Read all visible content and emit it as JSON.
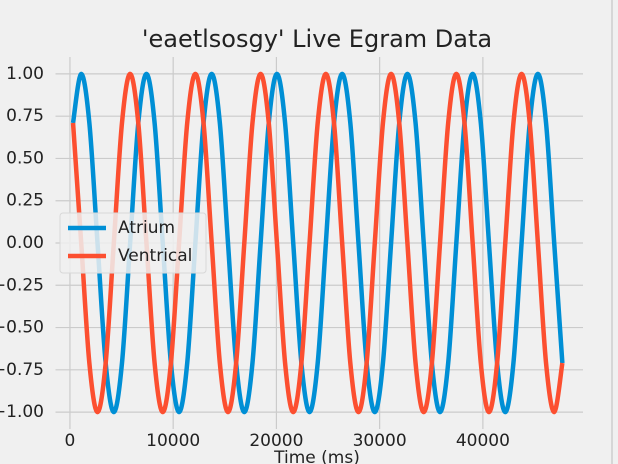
{
  "chart_data": {
    "type": "line",
    "title": "'eaetlsosgy' Live Egram Data",
    "xlabel": "Time (ms)",
    "x": [
      300,
      1090,
      1880,
      2670,
      3460,
      4250,
      5040,
      5830,
      6620,
      7410,
      8200,
      8990,
      9780,
      10570,
      11360,
      12150,
      12940,
      13730,
      14520,
      15310,
      16100,
      16890,
      17680,
      18470,
      19260,
      20050,
      20840,
      21630,
      22420,
      23210,
      24000,
      24790,
      25580,
      26370,
      27160,
      27950,
      28740,
      29530,
      30320,
      31110,
      31900,
      32690,
      33480,
      34270,
      35060,
      35850,
      36640,
      37430,
      38220,
      39010,
      39800,
      40590,
      41380,
      42170,
      42960,
      43750,
      44540,
      45330,
      46120,
      46910,
      47700
    ],
    "series": [
      {
        "name": "Atrium",
        "color": "#008fd5",
        "values": [
          0.71,
          1,
          0.71,
          0,
          -0.71,
          -1,
          -0.71,
          0,
          0.71,
          1,
          0.71,
          0,
          -0.71,
          -1,
          -0.71,
          0,
          0.71,
          1,
          0.71,
          0,
          -0.71,
          -1,
          -0.71,
          0,
          0.71,
          1,
          0.71,
          0,
          -0.71,
          -1,
          -0.71,
          0,
          0.71,
          1,
          0.71,
          0,
          -0.71,
          -1,
          -0.71,
          0,
          0.71,
          1,
          0.71,
          0,
          -0.71,
          -1,
          -0.71,
          0,
          0.71,
          1,
          0.71,
          0,
          -0.71,
          -1,
          -0.71,
          0,
          0.71,
          1,
          0.71,
          0,
          -0.71
        ]
      },
      {
        "name": "Ventrical",
        "color": "#fc4f30",
        "values": [
          0.71,
          0,
          -0.71,
          -1,
          -0.71,
          0,
          0.71,
          1,
          0.71,
          0,
          -0.71,
          -1,
          -0.71,
          0,
          0.71,
          1,
          0.71,
          0,
          -0.71,
          -1,
          -0.71,
          0,
          0.71,
          1,
          0.71,
          0,
          -0.71,
          -1,
          -0.71,
          0,
          0.71,
          1,
          0.71,
          0,
          -0.71,
          -1,
          -0.71,
          0,
          0.71,
          1,
          0.71,
          0,
          -0.71,
          -1,
          -0.71,
          0,
          0.71,
          1,
          0.71,
          0,
          -0.71,
          -1,
          -0.71,
          0,
          0.71,
          1,
          0.71,
          0,
          -0.71,
          -1,
          -0.71
        ]
      }
    ],
    "xlim": [
      -1400,
      49700
    ],
    "ylim": [
      -1.1,
      1.1
    ],
    "xticks": [
      0,
      10000,
      20000,
      30000,
      40000
    ],
    "yticks": [
      {
        "value": 1,
        "label": "1.00"
      },
      {
        "value": 0.75,
        "label": "0.75"
      },
      {
        "value": 0.5,
        "label": "0.50"
      },
      {
        "value": 0.25,
        "label": "0.25"
      },
      {
        "value": 0,
        "label": "0.00"
      },
      {
        "value": -0.25,
        "label": "−0.25"
      },
      {
        "value": -0.5,
        "label": "−0.50"
      },
      {
        "value": -0.75,
        "label": "−0.75"
      },
      {
        "value": -1,
        "label": "−1.00"
      }
    ],
    "grid": true,
    "legend": "center left"
  }
}
